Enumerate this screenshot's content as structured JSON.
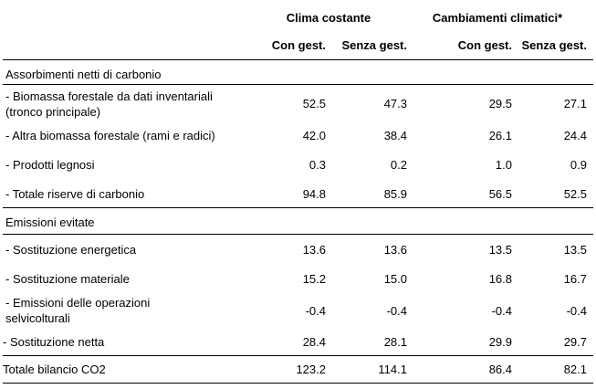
{
  "headers": {
    "group1": "Clima costante",
    "group2": "Cambiamenti climatici*",
    "sub": [
      "Con gest.",
      "Senza gest.",
      "Con gest.",
      "Senza gest."
    ]
  },
  "sections": [
    {
      "title": "Assorbimenti netti di carbonio",
      "rows": [
        {
          "label1": "- Biomassa forestale da dati inventariali",
          "label2": "(tronco principale)",
          "values": [
            "52.5",
            "47.3",
            "29.5",
            "27.1"
          ]
        },
        {
          "label1": "- Altra biomassa forestale (rami e radici)",
          "label2": "",
          "values": [
            "42.0",
            "38.4",
            "26.1",
            "24.4"
          ]
        },
        {
          "label1": "- Prodotti legnosi",
          "label2": "",
          "values": [
            "0.3",
            "0.2",
            "1.0",
            "0.9"
          ]
        },
        {
          "label1": "- Totale riserve di carbonio",
          "label2": "",
          "values": [
            "94.8",
            "85.9",
            "56.5",
            "52.5"
          ]
        }
      ]
    },
    {
      "title": "Emissioni evitate",
      "rows": [
        {
          "label1": "- Sostituzione energetica",
          "label2": "",
          "values": [
            "13.6",
            "13.6",
            "13.5",
            "13.5"
          ]
        },
        {
          "label1": "- Sostituzione materiale",
          "label2": "",
          "values": [
            "15.2",
            "15.0",
            "16.8",
            "16.7"
          ]
        },
        {
          "label1": "- Emissioni delle operazioni",
          "label2": "selvicolturali",
          "values": [
            "-0.4",
            "-0.4",
            "-0.4",
            "-0.4"
          ]
        },
        {
          "label1": "- Sostituzione netta",
          "label2": "",
          "values": [
            "28.4",
            "28.1",
            "29.9",
            "29.7"
          ]
        }
      ]
    }
  ],
  "total": {
    "label": "Totale bilancio CO2",
    "values": [
      "123.2",
      "114.1",
      "86.4",
      "82.1"
    ]
  }
}
